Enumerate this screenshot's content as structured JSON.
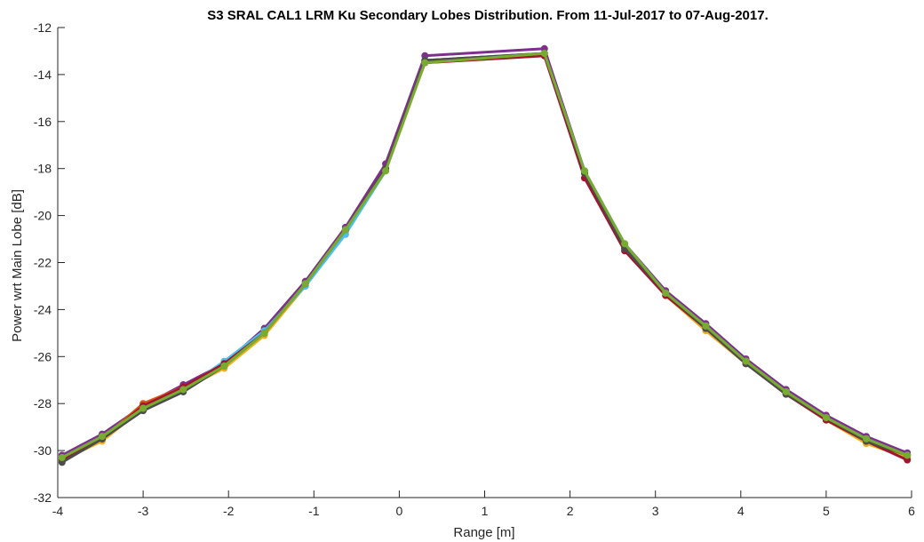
{
  "chart_data": {
    "type": "line",
    "title": "S3 SRAL CAL1 LRM Ku Secondary Lobes Distribution. From 11-Jul-2017 to 07-Aug-2017.",
    "xlabel": "Range [m]",
    "ylabel": "Power wrt Main Lobe [dB]",
    "xlim": [
      -4,
      6
    ],
    "ylim": [
      -32,
      -12
    ],
    "xticks": [
      -4,
      -3,
      -2,
      -1,
      0,
      1,
      2,
      3,
      4,
      5,
      6
    ],
    "yticks": [
      -32,
      -30,
      -28,
      -26,
      -24,
      -22,
      -20,
      -18,
      -16,
      -14,
      -12
    ],
    "grid": false,
    "legend": "none",
    "x": [
      -3.95,
      -3.48,
      -3.0,
      -2.53,
      -2.05,
      -1.58,
      -1.1,
      -0.63,
      -0.16,
      0.3,
      1.7,
      2.17,
      2.64,
      3.12,
      3.59,
      4.06,
      4.53,
      5.0,
      5.47,
      5.95
    ],
    "series": [
      {
        "color": "#7E2F8E",
        "values": [
          -30.2,
          -29.3,
          -28.1,
          -27.2,
          -26.3,
          -24.8,
          -22.8,
          -20.5,
          -17.8,
          -13.2,
          -12.9,
          -18.1,
          -21.2,
          -23.2,
          -24.6,
          -26.1,
          -27.4,
          -28.5,
          -29.4,
          -30.1
        ]
      },
      {
        "color": "#D95319",
        "values": [
          -30.3,
          -29.5,
          -28.0,
          -27.3,
          -26.4,
          -25.0,
          -22.9,
          -20.6,
          -18.0,
          -13.4,
          -13.1,
          -18.2,
          -21.4,
          -23.3,
          -24.8,
          -26.2,
          -27.5,
          -28.6,
          -29.6,
          -30.3
        ]
      },
      {
        "color": "#EDB120",
        "values": [
          -30.4,
          -29.6,
          -28.2,
          -27.4,
          -26.5,
          -25.1,
          -23.0,
          -20.7,
          -18.1,
          -13.5,
          -13.2,
          -18.2,
          -21.3,
          -23.4,
          -24.9,
          -26.3,
          -27.6,
          -28.7,
          -29.7,
          -30.3
        ]
      },
      {
        "color": "#4DBEEE",
        "values": [
          -30.3,
          -29.4,
          -28.2,
          -27.4,
          -26.2,
          -24.9,
          -23.0,
          -20.8,
          -18.1,
          -13.4,
          -13.1,
          -18.1,
          -21.2,
          -23.3,
          -24.7,
          -26.2,
          -27.5,
          -28.6,
          -29.5,
          -30.2
        ]
      },
      {
        "color": "#A2142F",
        "values": [
          -30.4,
          -29.5,
          -28.1,
          -27.3,
          -26.3,
          -25.0,
          -22.9,
          -20.6,
          -18.0,
          -13.5,
          -13.2,
          -18.4,
          -21.5,
          -23.4,
          -24.8,
          -26.3,
          -27.6,
          -28.7,
          -29.6,
          -30.4
        ]
      },
      {
        "color": "#4C4C4C",
        "values": [
          -30.5,
          -29.5,
          -28.3,
          -27.5,
          -26.4,
          -25.0,
          -22.9,
          -20.6,
          -18.0,
          -13.4,
          -13.1,
          -18.2,
          -21.4,
          -23.3,
          -24.8,
          -26.3,
          -27.6,
          -28.6,
          -29.6,
          -30.2
        ]
      },
      {
        "color": "#77AC30",
        "values": [
          -30.3,
          -29.4,
          -28.2,
          -27.4,
          -26.4,
          -25.0,
          -22.9,
          -20.6,
          -18.1,
          -13.5,
          -13.1,
          -18.1,
          -21.2,
          -23.3,
          -24.7,
          -26.2,
          -27.5,
          -28.6,
          -29.5,
          -30.2
        ]
      }
    ]
  }
}
